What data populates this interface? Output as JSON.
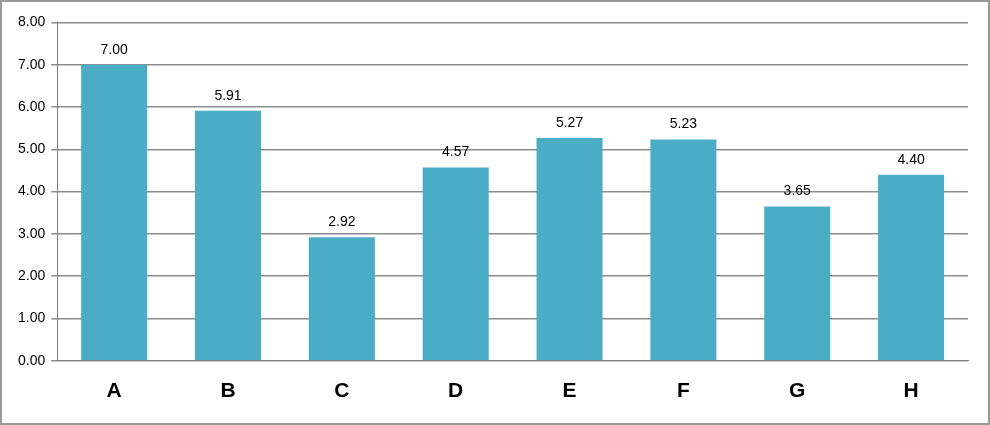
{
  "chart_data": {
    "type": "bar",
    "categories": [
      "A",
      "B",
      "C",
      "D",
      "E",
      "F",
      "G",
      "H"
    ],
    "values": [
      7,
      5.91,
      2.92,
      4.57,
      5.27,
      5.23,
      3.65,
      4.4
    ],
    "value_labels": [
      "7.00",
      "5.91",
      "2.92",
      "4.57",
      "5.27",
      "5.23",
      "3.65",
      "4.40"
    ],
    "color": "#4bacc6",
    "ylim": [
      0,
      8
    ],
    "yticks": [
      {
        "value": 0,
        "label": "0.00"
      },
      {
        "value": 1,
        "label": "1.00"
      },
      {
        "value": 2,
        "label": "2.00"
      },
      {
        "value": 3,
        "label": "3.00"
      },
      {
        "value": 4,
        "label": "4.00"
      },
      {
        "value": 5,
        "label": "5.00"
      },
      {
        "value": 6,
        "label": "6.00"
      },
      {
        "value": 7,
        "label": "7.00"
      },
      {
        "value": 8,
        "label": "8.00"
      }
    ],
    "grid": true,
    "data_labels": true
  }
}
